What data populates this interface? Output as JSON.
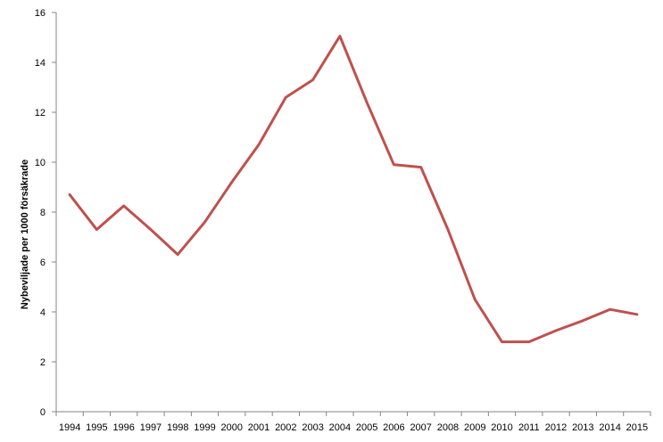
{
  "chart_data": {
    "type": "line",
    "title": "",
    "xlabel": "",
    "ylabel": "Nybeviljade per 1000 försäkrade",
    "ylim": [
      0,
      16
    ],
    "yticks": [
      0,
      2,
      4,
      6,
      8,
      10,
      12,
      14,
      16
    ],
    "grid": false,
    "legend": "none",
    "x": [
      "1994",
      "1995",
      "1996",
      "1997",
      "1998",
      "1999",
      "2000",
      "2001",
      "2002",
      "2003",
      "2004",
      "2005",
      "2006",
      "2007",
      "2008",
      "2009",
      "2010",
      "2011",
      "2012",
      "2013",
      "2014",
      "2015"
    ],
    "series": [
      {
        "color": "#C0504D",
        "values": [
          8.7,
          7.3,
          8.25,
          7.3,
          6.3,
          7.6,
          9.2,
          10.7,
          12.6,
          13.3,
          15.05,
          12.4,
          9.9,
          9.8,
          7.3,
          4.5,
          2.8,
          2.8,
          3.25,
          3.65,
          4.1,
          3.9
        ]
      }
    ]
  }
}
